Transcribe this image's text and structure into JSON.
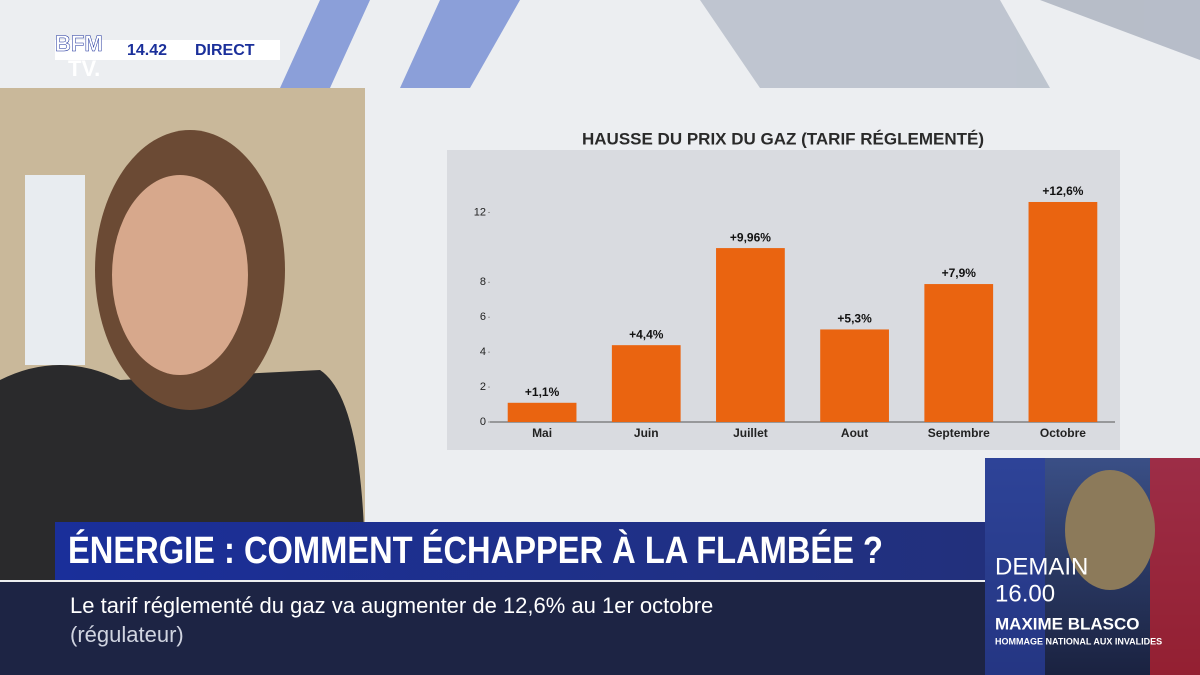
{
  "channel": {
    "logo_top": "BFM",
    "logo_bottom": "TV.",
    "time": "14.42",
    "status": "DIRECT"
  },
  "headline": "ÉNERGIE : COMMENT ÉCHAPPER À LA FLAMBÉE ?",
  "ticker": {
    "text": "Le tarif réglementé du gaz va augmenter de 12,6% au 1er octobre",
    "source": "(régulateur)"
  },
  "promo": {
    "day": "DEMAIN",
    "time": "16.00",
    "name": "MAXIME BLASCO",
    "subtitle": "HOMMAGE NATIONAL AUX INVALIDES"
  },
  "chart_data": {
    "type": "bar",
    "title": "HAUSSE DU PRIX DU GAZ (TARIF RÉGLEMENTÉ)",
    "categories": [
      "Mai",
      "Juin",
      "Juillet",
      "Aout",
      "Septembre",
      "Octobre"
    ],
    "values": [
      1.1,
      4.4,
      9.96,
      5.3,
      7.9,
      12.6
    ],
    "value_labels": [
      "+1,1%",
      "+4,4%",
      "+9,96%",
      "+5,3%",
      "+7,9%",
      "+12,6%"
    ],
    "color": "#ea6410",
    "ylim": [
      0,
      13
    ],
    "yticks": [
      0,
      2,
      4,
      6,
      8,
      12
    ],
    "grid": false
  }
}
